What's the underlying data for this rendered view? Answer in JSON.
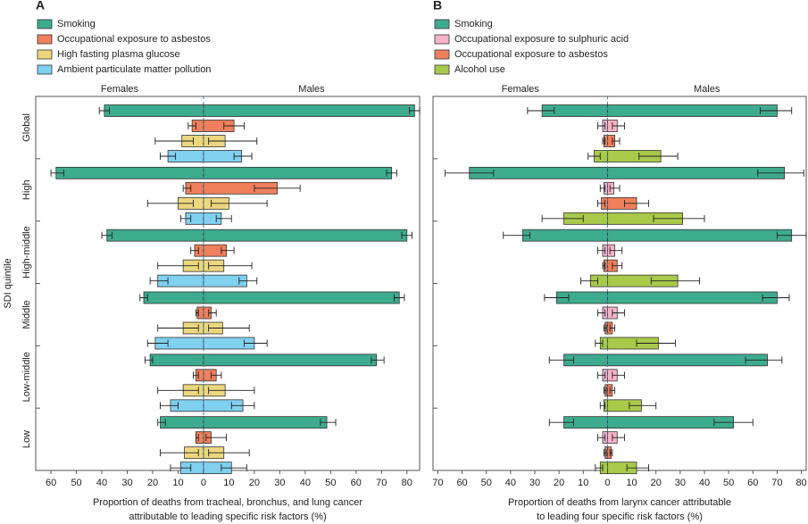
{
  "chart_data": [
    {
      "type": "bar",
      "panel_label": "A",
      "side_labels": [
        "Females",
        "Males"
      ],
      "ylabel": "SDI quintile",
      "xlabel": [
        "Proportion of deaths from tracheal, bronchus, and lung cancer",
        "attributable to leading specific risk factors (%)"
      ],
      "categories": [
        "Global",
        "High",
        "High-middle",
        "Middle",
        "Low-middle",
        "Low"
      ],
      "xlim": [
        -66,
        85
      ],
      "xticks": [
        {
          "value": -60,
          "label": "60"
        },
        {
          "value": -50,
          "label": "50"
        },
        {
          "value": -40,
          "label": "40"
        },
        {
          "value": -30,
          "label": "30"
        },
        {
          "value": -20,
          "label": "20"
        },
        {
          "value": -10,
          "label": "10"
        },
        0,
        10,
        20,
        30,
        40,
        50,
        60,
        70,
        80
      ],
      "series": [
        {
          "name": "Smoking",
          "color": "#3dab8d",
          "female": [
            39,
            58,
            38,
            23.5,
            21,
            17
          ],
          "male": [
            83,
            74,
            80,
            77,
            68,
            48.5
          ],
          "female_ci": [
            [
              37,
              41
            ],
            [
              55,
              60
            ],
            [
              36,
              40
            ],
            [
              22,
              25
            ],
            [
              20,
              23
            ],
            [
              15,
              18
            ]
          ],
          "male_ci": [
            [
              81,
              85
            ],
            [
              72,
              76
            ],
            [
              78,
              82
            ],
            [
              75,
              79
            ],
            [
              66,
              71
            ],
            [
              46,
              52
            ]
          ]
        },
        {
          "name": "Occupational exposure to asbestos",
          "color": "#f07f5c",
          "female": [
            4.5,
            7,
            3.5,
            2.5,
            3,
            3
          ],
          "male": [
            12,
            29,
            9,
            3,
            5,
            3
          ],
          "female_ci": [
            [
              3,
              6
            ],
            [
              5,
              8
            ],
            [
              2,
              5
            ],
            [
              2,
              3
            ],
            [
              2,
              4
            ],
            [
              2,
              3
            ]
          ],
          "male_ci": [
            [
              8,
              16
            ],
            [
              20,
              38
            ],
            [
              7,
              12
            ],
            [
              2,
              5
            ],
            [
              3,
              7
            ],
            [
              1,
              9
            ]
          ]
        },
        {
          "name": "High fasting plasma glucose",
          "color": "#ecd77f",
          "female": [
            8.5,
            10,
            8,
            8,
            8,
            7.5
          ],
          "male": [
            8.5,
            10,
            8,
            7.5,
            8.5,
            8
          ],
          "female_ci": [
            [
              4,
              19
            ],
            [
              4,
              22
            ],
            [
              2,
              18
            ],
            [
              2,
              18
            ],
            [
              2,
              18
            ],
            [
              2,
              17
            ]
          ],
          "male_ci": [
            [
              2,
              21
            ],
            [
              3,
              25
            ],
            [
              2,
              19
            ],
            [
              2,
              18
            ],
            [
              2,
              20
            ],
            [
              2,
              18
            ]
          ]
        },
        {
          "name": "Ambient particulate matter pollution",
          "color": "#80d0f0",
          "female": [
            14,
            7,
            18,
            19,
            13,
            9
          ],
          "male": [
            15,
            7,
            17,
            20,
            15.5,
            11
          ],
          "female_ci": [
            [
              11,
              17
            ],
            [
              5,
              9
            ],
            [
              14,
              21
            ],
            [
              14,
              22
            ],
            [
              10,
              17
            ],
            [
              5,
              13
            ]
          ],
          "male_ci": [
            [
              12,
              19
            ],
            [
              5,
              11
            ],
            [
              14,
              21
            ],
            [
              16,
              25
            ],
            [
              11,
              20
            ],
            [
              7,
              17
            ]
          ]
        }
      ]
    },
    {
      "type": "bar",
      "panel_label": "B",
      "side_labels": [
        "Females",
        "Males"
      ],
      "xlabel": [
        "Proportion of deaths from larynx cancer attributable",
        "to leading four specific risk factors (%)"
      ],
      "categories": [
        null,
        null,
        null,
        null,
        null,
        null
      ],
      "xlim": [
        -72,
        82
      ],
      "xticks": [
        {
          "value": -70,
          "label": "70"
        },
        {
          "value": -60,
          "label": "60"
        },
        {
          "value": -50,
          "label": "50"
        },
        {
          "value": -40,
          "label": "40"
        },
        {
          "value": -30,
          "label": "30"
        },
        {
          "value": -20,
          "label": "20"
        },
        {
          "value": -10,
          "label": "10"
        },
        0,
        10,
        20,
        30,
        40,
        50,
        60,
        70,
        80
      ],
      "series": [
        {
          "name": "Smoking",
          "color": "#3dab8d",
          "female": [
            27,
            57,
            35,
            21,
            18,
            18
          ],
          "male": [
            70,
            73,
            76,
            70,
            66,
            52
          ],
          "female_ci": [
            [
              22,
              33
            ],
            [
              47,
              67
            ],
            [
              32,
              43
            ],
            [
              16,
              26
            ],
            [
              14,
              24
            ],
            [
              14,
              24
            ]
          ],
          "male_ci": [
            [
              63,
              76
            ],
            [
              62,
              81
            ],
            [
              70,
              82
            ],
            [
              64,
              75
            ],
            [
              57,
              72
            ],
            [
              44,
              60
            ]
          ]
        },
        {
          "name": "Occupational exposure to sulphuric acid",
          "color": "#f7b3c8",
          "female": [
            2,
            1.5,
            2,
            2,
            2,
            2
          ],
          "male": [
            4,
            2.6,
            3,
            4,
            4,
            4
          ],
          "female_ci": [
            [
              1,
              4
            ],
            [
              1,
              3
            ],
            [
              1,
              4
            ],
            [
              1,
              4
            ],
            [
              1,
              4
            ],
            [
              1,
              4
            ]
          ],
          "male_ci": [
            [
              2,
              7
            ],
            [
              1,
              5
            ],
            [
              1,
              6
            ],
            [
              2,
              7
            ],
            [
              2,
              7
            ],
            [
              2,
              7
            ]
          ]
        },
        {
          "name": "Occupational exposure to asbestos",
          "color": "#f07f5c",
          "female": [
            1.5,
            2.5,
            1.5,
            1,
            1,
            1
          ],
          "male": [
            3,
            12,
            4,
            2,
            2,
            1.5
          ],
          "female_ci": [
            [
              1,
              2
            ],
            [
              1,
              4
            ],
            [
              1,
              2
            ],
            [
              0.5,
              1.5
            ],
            [
              0.5,
              1.5
            ],
            [
              0.5,
              1.5
            ]
          ],
          "male_ci": [
            [
              2,
              5
            ],
            [
              7,
              17
            ],
            [
              2,
              6
            ],
            [
              1,
              3
            ],
            [
              1,
              3
            ],
            [
              1,
              2
            ]
          ]
        },
        {
          "name": "Alcohol use",
          "color": "#a9c94b",
          "female": [
            5.5,
            18,
            7,
            3,
            1.5,
            3
          ],
          "male": [
            22,
            31,
            29,
            21,
            14,
            12
          ],
          "female_ci": [
            [
              3,
              8
            ],
            [
              10,
              27
            ],
            [
              4,
              11
            ],
            [
              2,
              5
            ],
            [
              1,
              3
            ],
            [
              2,
              5
            ]
          ],
          "male_ci": [
            [
              13,
              29
            ],
            [
              19,
              40
            ],
            [
              18,
              38
            ],
            [
              12,
              28
            ],
            [
              9,
              20
            ],
            [
              8,
              17
            ]
          ]
        }
      ]
    }
  ]
}
